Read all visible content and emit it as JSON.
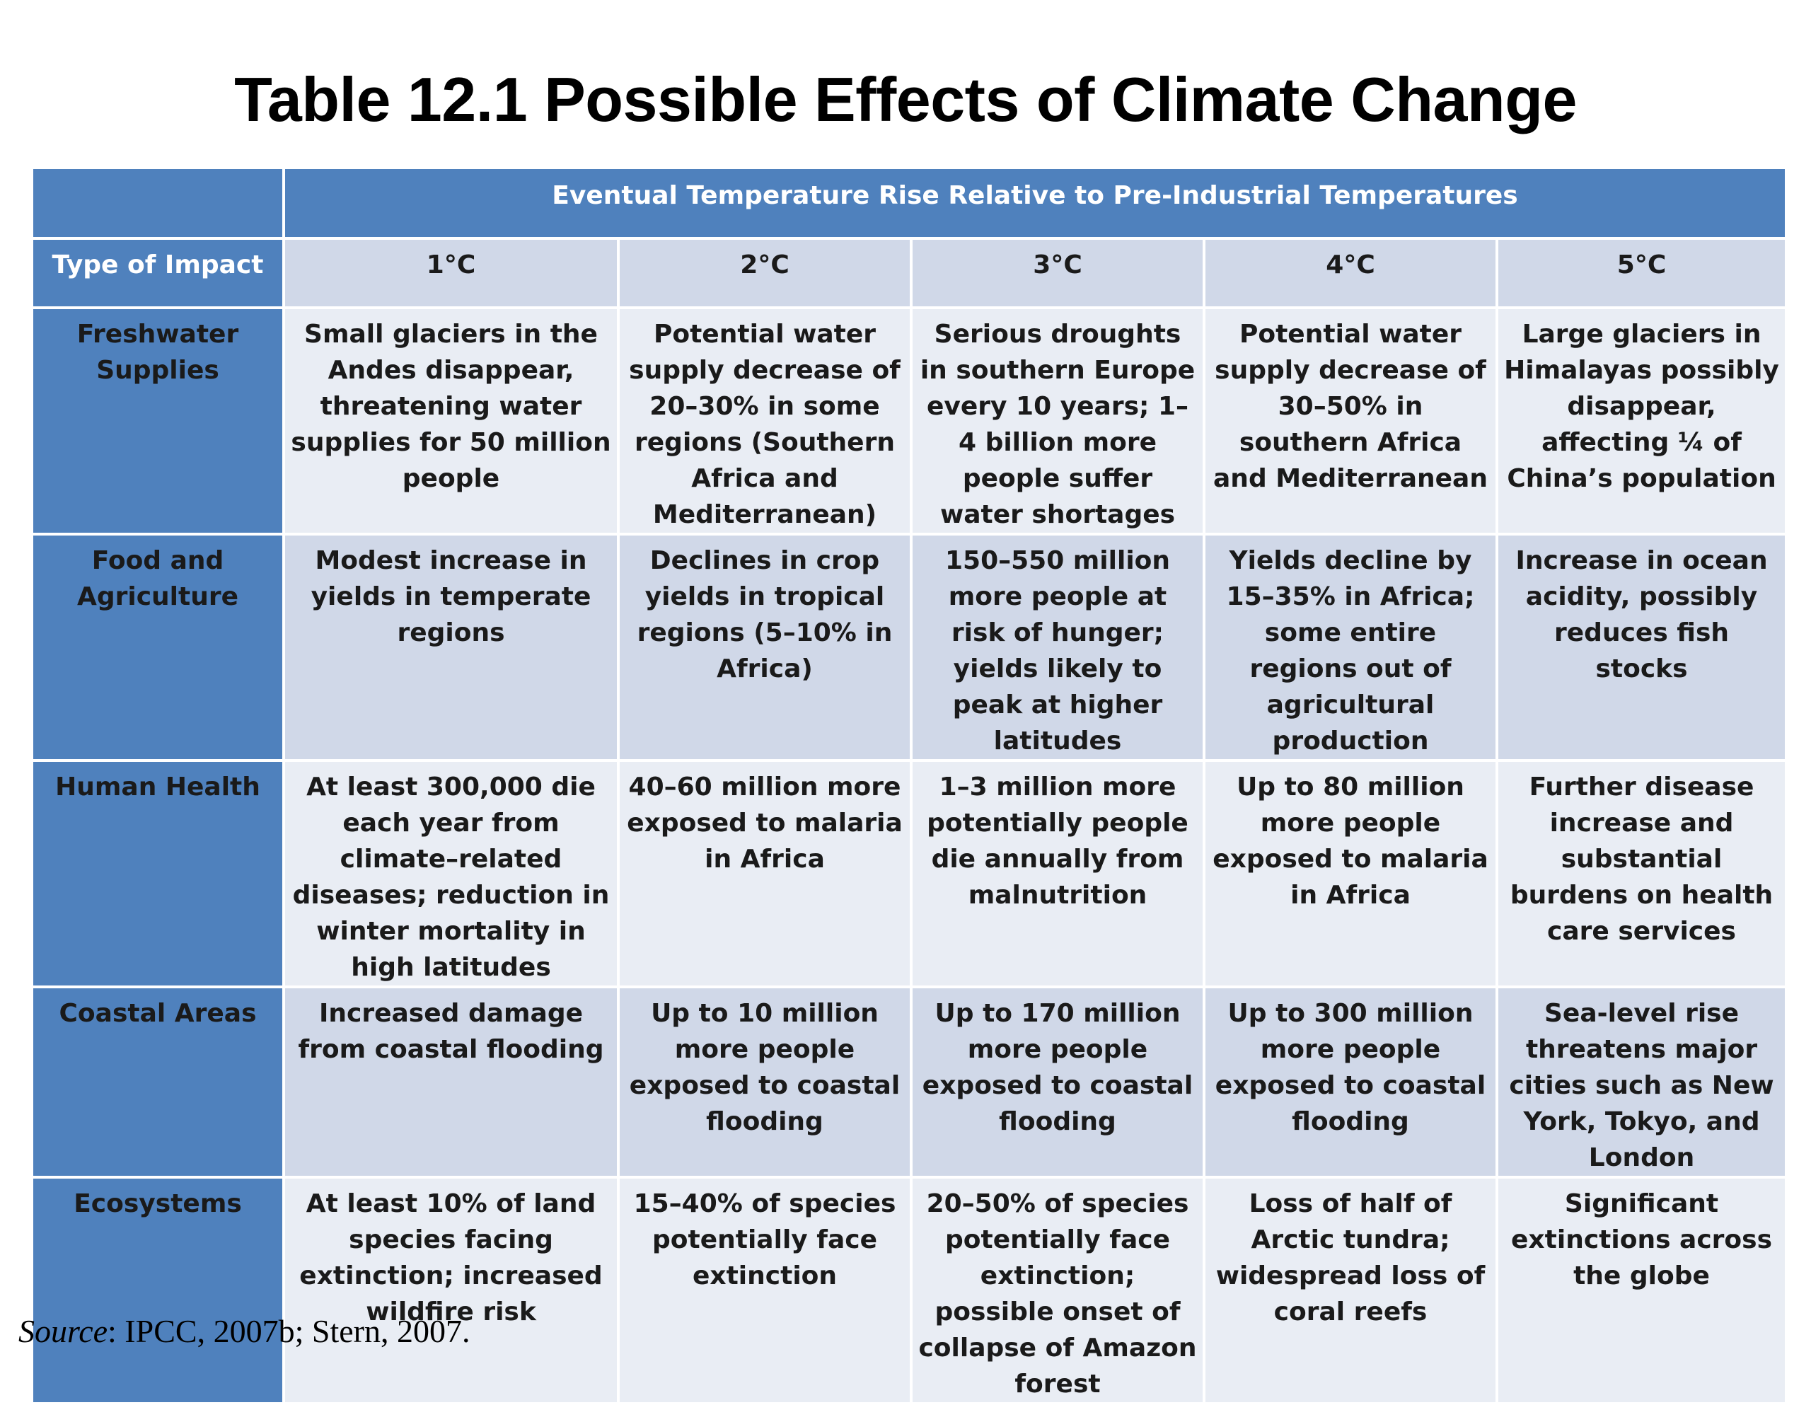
{
  "title": "Table 12.1 Possible Effects of Climate Change",
  "table": {
    "span_header": "Eventual Temperature Rise Relative to Pre-Industrial Temperatures",
    "label_header": "Type of Impact",
    "temperatures": [
      "1°C",
      "2°C",
      "3°C",
      "4°C",
      "5°C"
    ],
    "rows": [
      {
        "label": "Freshwater Supplies",
        "cells": [
          "Small glaciers in the Andes disappear, threatening water supplies for 50 million people",
          "Potential water supply decrease of 20–30% in some regions (Southern Africa and Mediterranean)",
          "Serious droughts in southern Europe every 10 years; 1–4 billion more people suffer water shortages",
          "Potential water supply decrease of 30–50% in southern Africa and Mediterranean",
          "Large glaciers in Himalayas possibly disappear, affecting ¼ of China’s population"
        ]
      },
      {
        "label": "Food and Agriculture",
        "cells": [
          "Modest increase in yields in temperate regions",
          "Declines in crop yields in tropical regions (5–10% in Africa)",
          "150–550 million more people at risk of hunger; yields likely to peak at higher latitudes",
          "Yields decline by 15–35% in Africa; some entire regions out of agricultural production",
          "Increase in ocean acidity, possibly reduces fish stocks"
        ]
      },
      {
        "label": "Human Health",
        "cells": [
          "At least 300,000 die each year from climate–related diseases; reduction in winter mortality in high latitudes",
          "40–60 million more exposed to malaria in Africa",
          "1–3 million more potentially people die annually from malnutrition",
          "Up to 80 million more people exposed to malaria in Africa",
          "Further disease increase and substantial burdens on health care services"
        ]
      },
      {
        "label": "Coastal Areas",
        "cells": [
          "Increased damage from coastal flooding",
          "Up to 10 million more people exposed to coastal flooding",
          "Up to 170 million more people exposed to coastal flooding",
          "Up to 300 million more people exposed to coastal flooding",
          "Sea-level rise threatens major cities such as New York, Tokyo, and London"
        ]
      },
      {
        "label": "Ecosystems",
        "cells": [
          "At least 10% of land species facing extinction; increased wildfire risk",
          "15–40% of species potentially face extinction",
          "20–50% of species potentially face extinction; possible onset of collapse of Amazon forest",
          "Loss of half of Arctic tundra; widespread loss of coral reefs",
          "Significant extinctions across the globe"
        ]
      }
    ]
  },
  "source": {
    "label": "Source",
    "text": ": IPCC, 2007b; Stern, 2007."
  }
}
